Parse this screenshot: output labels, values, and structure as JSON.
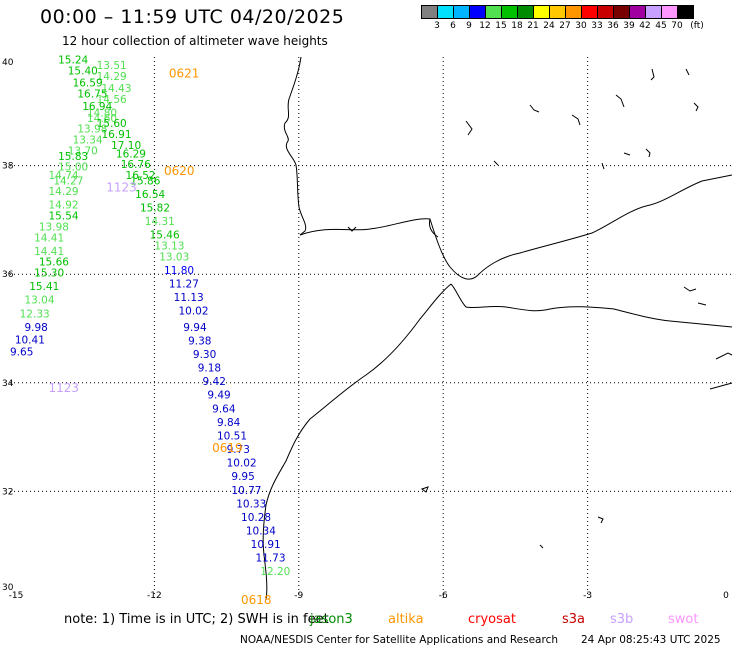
{
  "title": "00:00 – 11:59 UTC 04/20/2025",
  "subtitle": "12 hour collection of altimeter wave heights",
  "scale_legend": {
    "unit": "(ft)",
    "colors": [
      "#808080",
      "#00e0ff",
      "#00b4ff",
      "#0000ff",
      "#50e050",
      "#00c000",
      "#008c00",
      "#ffff00",
      "#ffc800",
      "#ff9600",
      "#ff0000",
      "#c80000",
      "#780000",
      "#a000a0",
      "#c8a0ff",
      "#ff96ff",
      "#000000"
    ],
    "labels": [
      "3",
      "6",
      "9",
      "12",
      "15",
      "18",
      "21",
      "24",
      "27",
      "30",
      "33",
      "36",
      "39",
      "42",
      "45",
      "70"
    ]
  },
  "map": {
    "lon_range": [
      -15,
      0
    ],
    "lat_range": [
      30,
      40
    ],
    "x_ticks": [
      "-15",
      "-12",
      "-9",
      "-6",
      "-3",
      "0"
    ],
    "y_ticks": [
      "40",
      "38",
      "36",
      "34",
      "32",
      "30"
    ],
    "coast_color": "#000000"
  },
  "track_labels": [
    {
      "text": "0621",
      "lon": -11.7,
      "lat": 39.7,
      "color": "#ff9600"
    },
    {
      "text": "0620",
      "lon": -11.8,
      "lat": 37.9,
      "color": "#ff9600"
    },
    {
      "text": "0619",
      "lon": -10.8,
      "lat": 32.8,
      "color": "#ff9600"
    },
    {
      "text": "0618",
      "lon": -10.2,
      "lat": 30.0,
      "color": "#ff9600"
    },
    {
      "text": "1123",
      "lon": -14.2,
      "lat": 33.9,
      "color": "#c8a0ff"
    },
    {
      "text": "1123",
      "lon": -13.0,
      "lat": 37.6,
      "color": "#c8a0ff"
    }
  ],
  "observations": [
    {
      "v": "15.24",
      "lon": -14.0,
      "lat": 39.95,
      "color": "#00c000"
    },
    {
      "v": "13.51",
      "lon": -13.2,
      "lat": 39.85,
      "color": "#50e050"
    },
    {
      "v": "15.40",
      "lon": -13.8,
      "lat": 39.75,
      "color": "#00c000"
    },
    {
      "v": "14.29",
      "lon": -13.2,
      "lat": 39.65,
      "color": "#50e050"
    },
    {
      "v": "16.59",
      "lon": -13.7,
      "lat": 39.53,
      "color": "#00c000"
    },
    {
      "v": "14.43",
      "lon": -13.1,
      "lat": 39.43,
      "color": "#50e050"
    },
    {
      "v": "16.75",
      "lon": -13.6,
      "lat": 39.33,
      "color": "#00c000"
    },
    {
      "v": "14.56",
      "lon": -13.2,
      "lat": 39.23,
      "color": "#50e050"
    },
    {
      "v": "16.94",
      "lon": -13.5,
      "lat": 39.1,
      "color": "#00c000"
    },
    {
      "v": "14.80",
      "lon": -13.4,
      "lat": 38.98,
      "color": "#50e050"
    },
    {
      "v": "14.60",
      "lon": -13.4,
      "lat": 38.88,
      "color": "#50e050"
    },
    {
      "v": "15.60",
      "lon": -13.2,
      "lat": 38.78,
      "color": "#00c000"
    },
    {
      "v": "13.98",
      "lon": -13.6,
      "lat": 38.68,
      "color": "#50e050"
    },
    {
      "v": "16.91",
      "lon": -13.1,
      "lat": 38.58,
      "color": "#00c000"
    },
    {
      "v": "13.34",
      "lon": -13.7,
      "lat": 38.48,
      "color": "#50e050"
    },
    {
      "v": "17.10",
      "lon": -12.9,
      "lat": 38.38,
      "color": "#00c000"
    },
    {
      "v": "13.70",
      "lon": -13.8,
      "lat": 38.28,
      "color": "#50e050"
    },
    {
      "v": "16.29",
      "lon": -12.8,
      "lat": 38.22,
      "color": "#00c000"
    },
    {
      "v": "15.83",
      "lon": -14.0,
      "lat": 38.18,
      "color": "#00c000"
    },
    {
      "v": "16.76",
      "lon": -12.7,
      "lat": 38.03,
      "color": "#00c000"
    },
    {
      "v": "15.00",
      "lon": -14.0,
      "lat": 37.98,
      "color": "#50e050"
    },
    {
      "v": "16.52",
      "lon": -12.6,
      "lat": 37.83,
      "color": "#00c000"
    },
    {
      "v": "14.74",
      "lon": -14.2,
      "lat": 37.83,
      "color": "#50e050"
    },
    {
      "v": "14.27",
      "lon": -14.1,
      "lat": 37.73,
      "color": "#50e050"
    },
    {
      "v": "15.86",
      "lon": -12.5,
      "lat": 37.73,
      "color": "#00c000"
    },
    {
      "v": "14.29",
      "lon": -14.2,
      "lat": 37.53,
      "color": "#50e050"
    },
    {
      "v": "16.54",
      "lon": -12.4,
      "lat": 37.48,
      "color": "#00c000"
    },
    {
      "v": "14.92",
      "lon": -14.2,
      "lat": 37.28,
      "color": "#50e050"
    },
    {
      "v": "15.82",
      "lon": -12.3,
      "lat": 37.23,
      "color": "#00c000"
    },
    {
      "v": "15.54",
      "lon": -14.2,
      "lat": 37.08,
      "color": "#00c000"
    },
    {
      "v": "14.31",
      "lon": -12.2,
      "lat": 36.98,
      "color": "#50e050"
    },
    {
      "v": "13.98",
      "lon": -14.4,
      "lat": 36.88,
      "color": "#50e050"
    },
    {
      "v": "15.46",
      "lon": -12.1,
      "lat": 36.73,
      "color": "#00c000"
    },
    {
      "v": "14.41",
      "lon": -14.5,
      "lat": 36.68,
      "color": "#50e050"
    },
    {
      "v": "13.13",
      "lon": -12.0,
      "lat": 36.53,
      "color": "#50e050"
    },
    {
      "v": "14.41",
      "lon": -14.5,
      "lat": 36.43,
      "color": "#50e050"
    },
    {
      "v": "13.03",
      "lon": -11.9,
      "lat": 36.33,
      "color": "#50e050"
    },
    {
      "v": "15.66",
      "lon": -14.4,
      "lat": 36.23,
      "color": "#00c000"
    },
    {
      "v": "11.80",
      "lon": -11.8,
      "lat": 36.08,
      "color": "#0000ff"
    },
    {
      "v": "15.30",
      "lon": -14.5,
      "lat": 36.03,
      "color": "#00c000"
    },
    {
      "v": "11.27",
      "lon": -11.7,
      "lat": 35.83,
      "color": "#0000c8"
    },
    {
      "v": "15.41",
      "lon": -14.6,
      "lat": 35.78,
      "color": "#00c000"
    },
    {
      "v": "11.13",
      "lon": -11.6,
      "lat": 35.58,
      "color": "#0000c8"
    },
    {
      "v": "13.04",
      "lon": -14.7,
      "lat": 35.53,
      "color": "#50e050"
    },
    {
      "v": "10.02",
      "lon": -11.5,
      "lat": 35.33,
      "color": "#0000c8"
    },
    {
      "v": "12.33",
      "lon": -14.8,
      "lat": 35.28,
      "color": "#50e050"
    },
    {
      "v": "9.98",
      "lon": -14.7,
      "lat": 35.03,
      "color": "#0000c8"
    },
    {
      "v": "9.94",
      "lon": -11.4,
      "lat": 35.03,
      "color": "#0000c8"
    },
    {
      "v": "10.41",
      "lon": -14.9,
      "lat": 34.8,
      "color": "#0000c8"
    },
    {
      "v": "9.38",
      "lon": -11.3,
      "lat": 34.78,
      "color": "#0000c8"
    },
    {
      "v": "9.65",
      "lon": -15.0,
      "lat": 34.58,
      "color": "#0000c8"
    },
    {
      "v": "9.30",
      "lon": -11.2,
      "lat": 34.53,
      "color": "#0000c8"
    },
    {
      "v": "9.18",
      "lon": -11.1,
      "lat": 34.28,
      "color": "#0000c8"
    },
    {
      "v": "9.42",
      "lon": -11.0,
      "lat": 34.03,
      "color": "#0000c8"
    },
    {
      "v": "9.49",
      "lon": -10.9,
      "lat": 33.78,
      "color": "#0000c8"
    },
    {
      "v": "9.64",
      "lon": -10.8,
      "lat": 33.53,
      "color": "#0000c8"
    },
    {
      "v": "9.84",
      "lon": -10.7,
      "lat": 33.28,
      "color": "#0000c8"
    },
    {
      "v": "10.51",
      "lon": -10.7,
      "lat": 33.03,
      "color": "#0000c8"
    },
    {
      "v": "9.73",
      "lon": -10.5,
      "lat": 32.78,
      "color": "#0000c8"
    },
    {
      "v": "10.02",
      "lon": -10.5,
      "lat": 32.53,
      "color": "#0000c8"
    },
    {
      "v": "9.95",
      "lon": -10.4,
      "lat": 32.28,
      "color": "#0000c8"
    },
    {
      "v": "10.77",
      "lon": -10.4,
      "lat": 32.03,
      "color": "#0000c8"
    },
    {
      "v": "10.33",
      "lon": -10.3,
      "lat": 31.78,
      "color": "#0000c8"
    },
    {
      "v": "10.28",
      "lon": -10.2,
      "lat": 31.53,
      "color": "#0000c8"
    },
    {
      "v": "10.34",
      "lon": -10.1,
      "lat": 31.28,
      "color": "#0000c8"
    },
    {
      "v": "10.91",
      "lon": -10.0,
      "lat": 31.03,
      "color": "#0000c8"
    },
    {
      "v": "11.73",
      "lon": -9.9,
      "lat": 30.78,
      "color": "#0000c8"
    },
    {
      "v": "12.20",
      "lon": -9.8,
      "lat": 30.53,
      "color": "#50e050"
    }
  ],
  "note": "note:  1) Time is in UTC;  2) SWH is in feet",
  "satellites": [
    {
      "name": "jason3",
      "color": "#008c00"
    },
    {
      "name": "altika",
      "color": "#ff9600"
    },
    {
      "name": "cryosat",
      "color": "#ff0000"
    },
    {
      "name": "s3a",
      "color": "#c80000"
    },
    {
      "name": "s3b",
      "color": "#c8a0ff"
    },
    {
      "name": "swot",
      "color": "#ff96ff"
    }
  ],
  "credit": "NOAA/NESDIS Center for Satellite Applications and Research",
  "timestamp": "24 Apr 08:25:43 UTC 2025"
}
